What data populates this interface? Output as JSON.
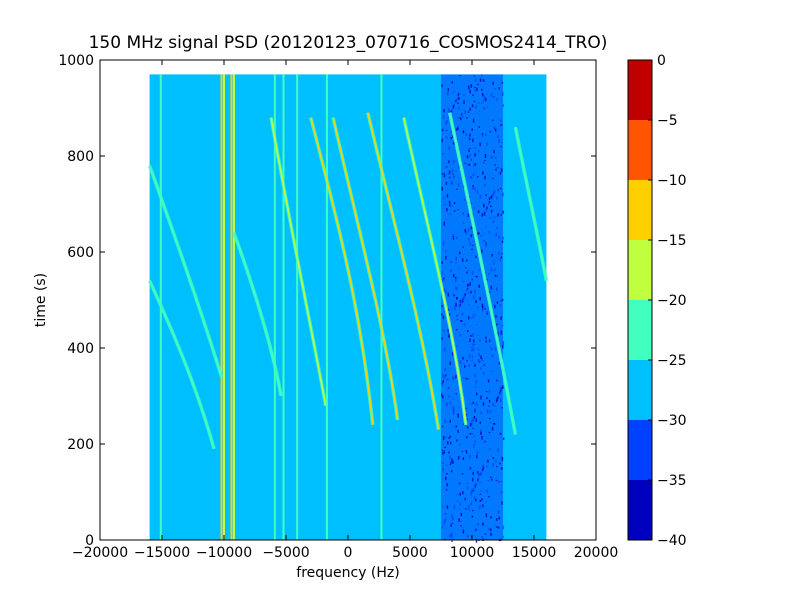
{
  "chart_data": {
    "type": "heatmap",
    "title": "150 MHz signal PSD (20120123_070716_COSMOS2414_TRO)",
    "xlabel": "frequency (Hz)",
    "ylabel": "time (s)",
    "xlim": [
      -20000,
      20000
    ],
    "ylim": [
      0,
      1000
    ],
    "x_ticks": [
      -20000,
      -15000,
      -10000,
      -5000,
      0,
      5000,
      10000,
      15000,
      20000
    ],
    "x_tick_labels": [
      "−20000",
      "−15000",
      "−10000",
      "−5000",
      "0",
      "5000",
      "10000",
      "15000",
      "20000"
    ],
    "y_ticks": [
      0,
      200,
      400,
      600,
      800,
      1000
    ],
    "y_tick_labels": [
      "0",
      "200",
      "400",
      "600",
      "800",
      "1000"
    ],
    "data_extent": {
      "x": [
        -16000,
        16000
      ],
      "y": [
        0,
        970
      ]
    },
    "background_level": -28,
    "grid": false,
    "colorbar": {
      "range": [
        -40,
        0
      ],
      "ticks": [
        0,
        -5,
        -10,
        -15,
        -20,
        -25,
        -30,
        -35,
        -40
      ],
      "tick_labels": [
        "0",
        "−5",
        "−10",
        "−15",
        "−20",
        "−25",
        "−30",
        "−35",
        "−40"
      ],
      "bands": [
        {
          "from": -40,
          "to": -35,
          "color": "#0000bf"
        },
        {
          "from": -35,
          "to": -30,
          "color": "#0040ff"
        },
        {
          "from": -30,
          "to": -25,
          "color": "#00bfff"
        },
        {
          "from": -25,
          "to": -20,
          "color": "#40ffbf"
        },
        {
          "from": -20,
          "to": -15,
          "color": "#bfff40"
        },
        {
          "from": -15,
          "to": -10,
          "color": "#ffd000"
        },
        {
          "from": -10,
          "to": -5,
          "color": "#ff5500"
        },
        {
          "from": -5,
          "to": 0,
          "color": "#c00000"
        }
      ]
    },
    "noise_region": {
      "x": [
        7500,
        12500
      ],
      "level": -34
    },
    "vertical_lines": [
      {
        "x": -15100,
        "level": -22
      },
      {
        "x": -10200,
        "level": -12
      },
      {
        "x": -10000,
        "level": -18
      },
      {
        "x": -9400,
        "level": -14
      },
      {
        "x": -9200,
        "level": -18
      },
      {
        "x": -5900,
        "level": -22
      },
      {
        "x": -5200,
        "level": -24
      },
      {
        "x": -4100,
        "level": -22
      },
      {
        "x": -1700,
        "level": -20
      },
      {
        "x": 2700,
        "level": -22
      }
    ],
    "doppler_traces": [
      {
        "x": [
          -16000,
          -13500,
          -11500,
          -10200
        ],
        "t": [
          780,
          600,
          450,
          340
        ],
        "level": -23
      },
      {
        "x": [
          -16000,
          -13500,
          -12000,
          -10800
        ],
        "t": [
          540,
          400,
          300,
          190
        ],
        "level": -23
      },
      {
        "x": [
          -9200,
          -7500,
          -6000,
          -5400
        ],
        "t": [
          640,
          520,
          390,
          300
        ],
        "level": -20
      },
      {
        "x": [
          -6200,
          -4500,
          -3000,
          -1800
        ],
        "t": [
          880,
          630,
          450,
          280
        ],
        "level": -15
      },
      {
        "x": [
          -3000,
          -500,
          1000,
          2000
        ],
        "t": [
          880,
          630,
          480,
          240
        ],
        "level": -13
      },
      {
        "x": [
          -1200,
          1000,
          3000,
          4000
        ],
        "t": [
          880,
          630,
          440,
          250
        ],
        "level": -11
      },
      {
        "x": [
          1600,
          4000,
          6000,
          7300
        ],
        "t": [
          890,
          630,
          440,
          230
        ],
        "level": -13
      },
      {
        "x": [
          4500,
          6500,
          8500,
          9500
        ],
        "t": [
          880,
          640,
          450,
          240
        ],
        "level": -18
      },
      {
        "x": [
          8200,
          10500,
          12000,
          13500
        ],
        "t": [
          890,
          610,
          430,
          220
        ],
        "level": -22
      },
      {
        "x": [
          13500,
          14500,
          15500,
          16000
        ],
        "t": [
          860,
          730,
          610,
          540
        ],
        "level": -21
      }
    ]
  }
}
